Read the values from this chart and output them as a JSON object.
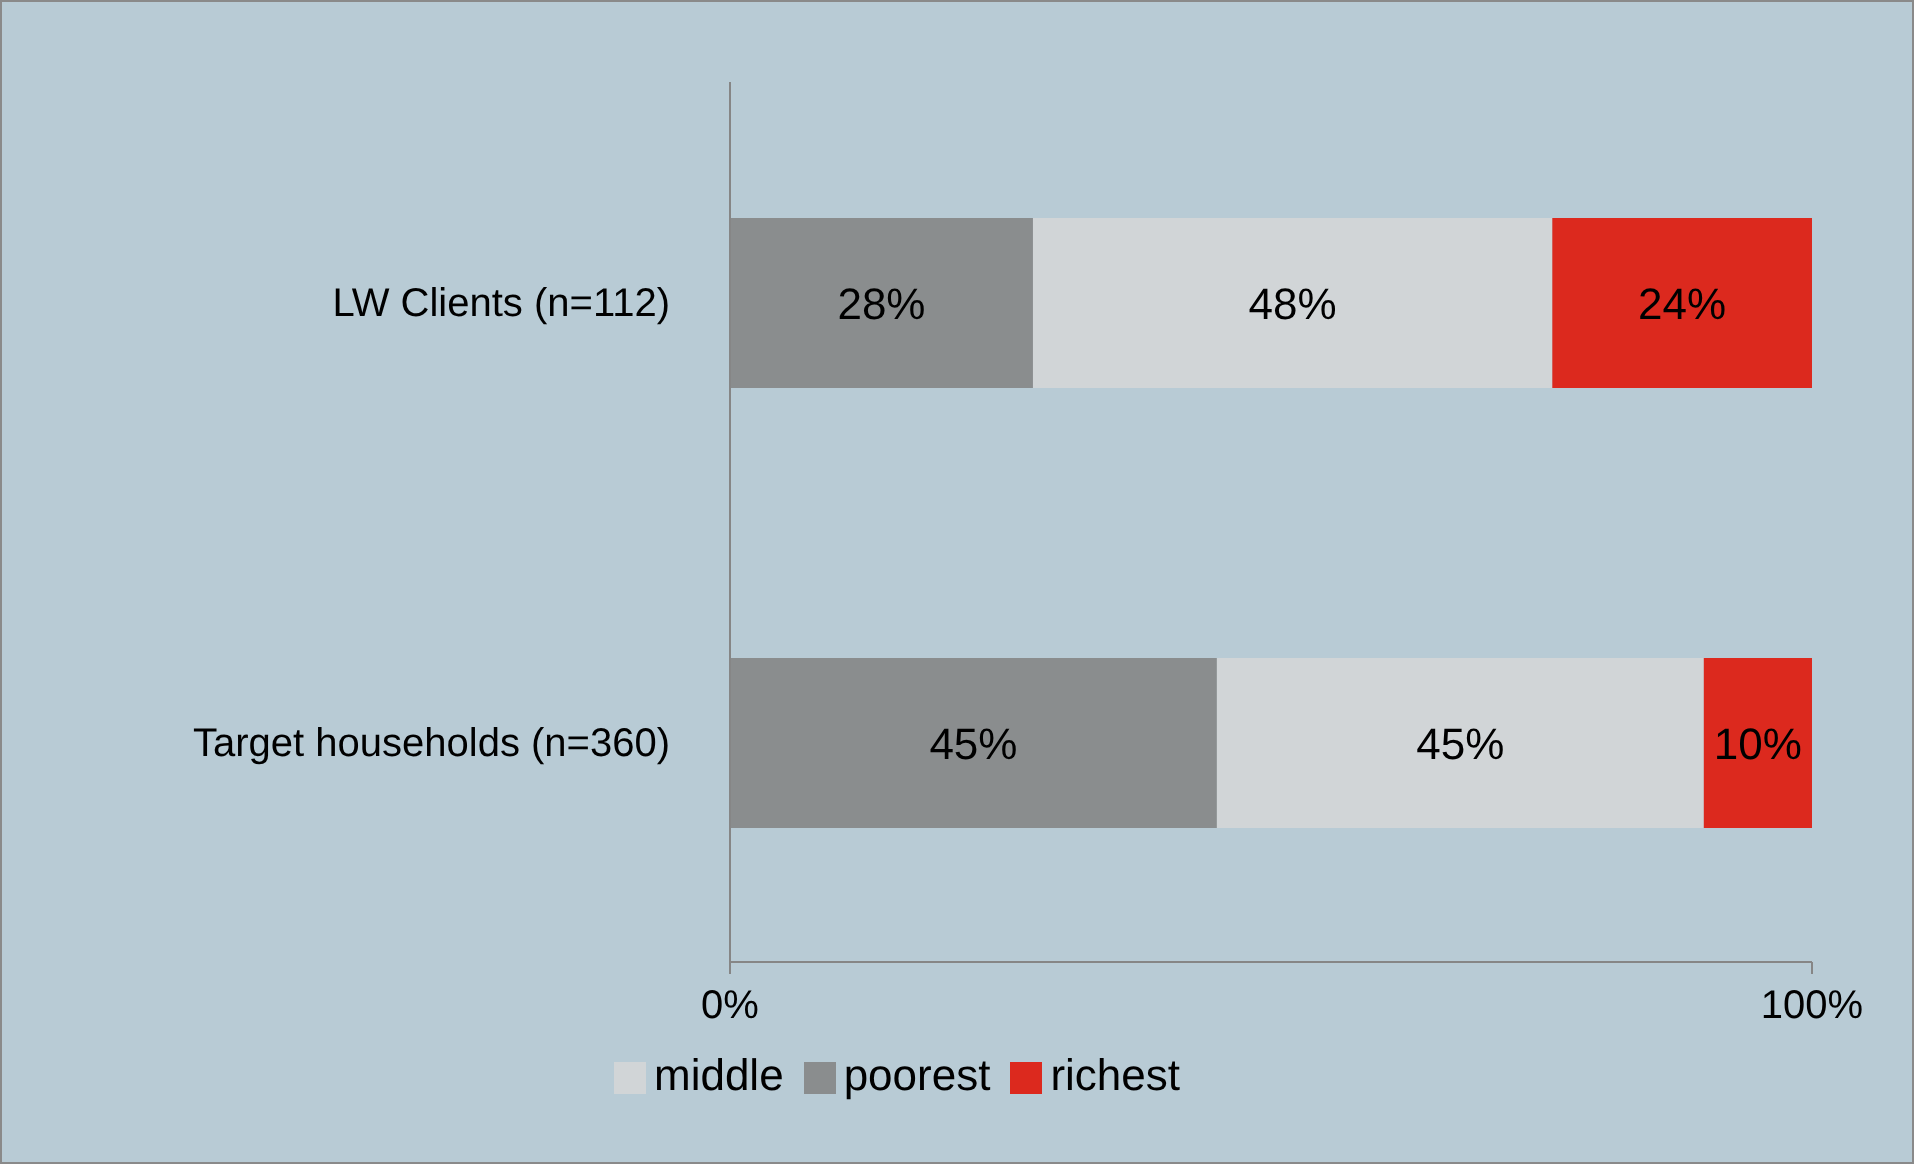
{
  "chart_data": {
    "type": "bar",
    "orientation": "horizontal",
    "stacked": true,
    "categories": [
      "LW Clients (n=112)",
      "Target households (n=360)"
    ],
    "series": [
      {
        "name": "poorest",
        "color": "#8a8d8e",
        "values": [
          28,
          45
        ],
        "value_labels": [
          "28%",
          "45%"
        ]
      },
      {
        "name": "middle",
        "color": "#d1d5d7",
        "values": [
          48,
          45
        ],
        "value_labels": [
          "48%",
          "45%"
        ]
      },
      {
        "name": "richest",
        "color": "#dc291e",
        "values": [
          24,
          10
        ],
        "value_labels": [
          "24%",
          "10%"
        ]
      }
    ],
    "xlim": [
      0,
      100
    ],
    "xticks": [
      {
        "value": 0,
        "label": "0%"
      },
      {
        "value": 100,
        "label": "100%"
      }
    ],
    "grid": false,
    "legend": "bottom"
  }
}
